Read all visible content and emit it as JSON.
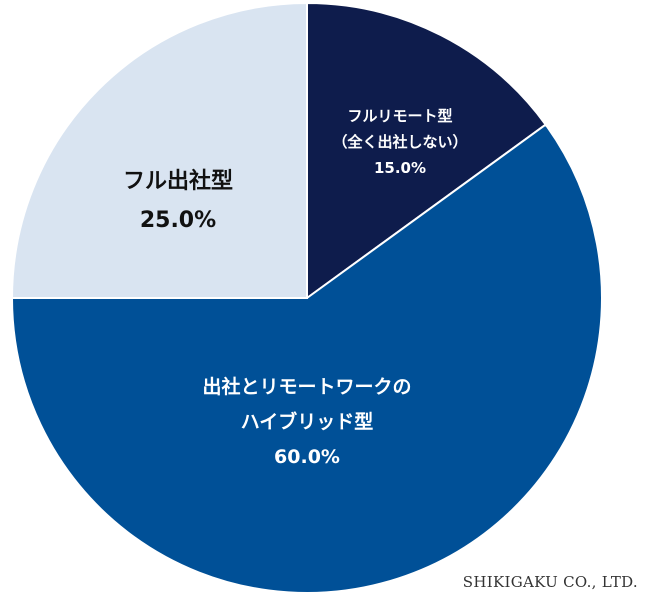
{
  "chart_data": {
    "type": "pie",
    "start_angle_deg": 0,
    "direction": "clockwise",
    "legend": "none",
    "slices": [
      {
        "lines": [
          "フルリモート型",
          "（全く出社しない）"
        ],
        "value": 15.0,
        "value_label": "15.0%",
        "color": "#0e1c4c",
        "text_color": "#ffffff"
      },
      {
        "lines": [
          "出社とリモートワークの",
          "ハイブリッド型"
        ],
        "value": 60.0,
        "value_label": "60.0%",
        "color": "#005097",
        "text_color": "#ffffff"
      },
      {
        "lines": [
          "フル出社型"
        ],
        "value": 25.0,
        "value_label": "25.0%",
        "color": "#d9e4f1",
        "text_color": "#111111"
      }
    ]
  },
  "credit": "SHIKIGAKU CO., LTD."
}
